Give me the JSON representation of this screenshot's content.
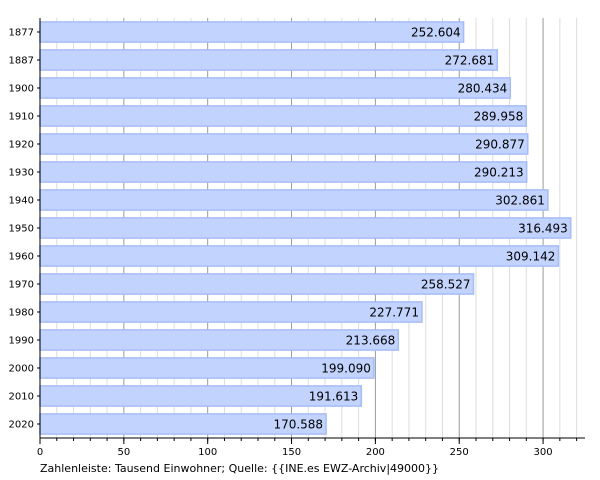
{
  "chart_data": {
    "type": "bar",
    "orientation": "horizontal",
    "categories": [
      "1877",
      "1887",
      "1900",
      "1910",
      "1920",
      "1930",
      "1940",
      "1950",
      "1960",
      "1970",
      "1980",
      "1990",
      "2000",
      "2010",
      "2020"
    ],
    "values": [
      252.604,
      272.681,
      280.434,
      289.958,
      290.877,
      290.213,
      302.861,
      316.493,
      309.142,
      258.527,
      227.771,
      213.668,
      199.09,
      191.613,
      170.588
    ],
    "value_labels": [
      "252.604",
      "272.681",
      "280.434",
      "289.958",
      "290.877",
      "290.213",
      "302.861",
      "316.493",
      "309.142",
      "258.527",
      "227.771",
      "213.668",
      "199.090",
      "191.613",
      "170.588"
    ],
    "xlim": [
      0,
      325
    ],
    "x_ticks": [
      0,
      50,
      100,
      150,
      200,
      250,
      300
    ],
    "x_tick_labels": [
      "0",
      "50",
      "100",
      "150",
      "200",
      "250",
      "300"
    ],
    "minor_tick_step": 10,
    "grid": "vertical",
    "bar_color": "#c2d3fd",
    "bar_edge_color": "#a6bcf8",
    "grid_major_color": "#999999",
    "grid_minor_color": "#dddddd"
  },
  "caption": "Zahlenleiste: Tausend Einwohner; Quelle: {{INE.es EWZ-Archiv|49000}}"
}
